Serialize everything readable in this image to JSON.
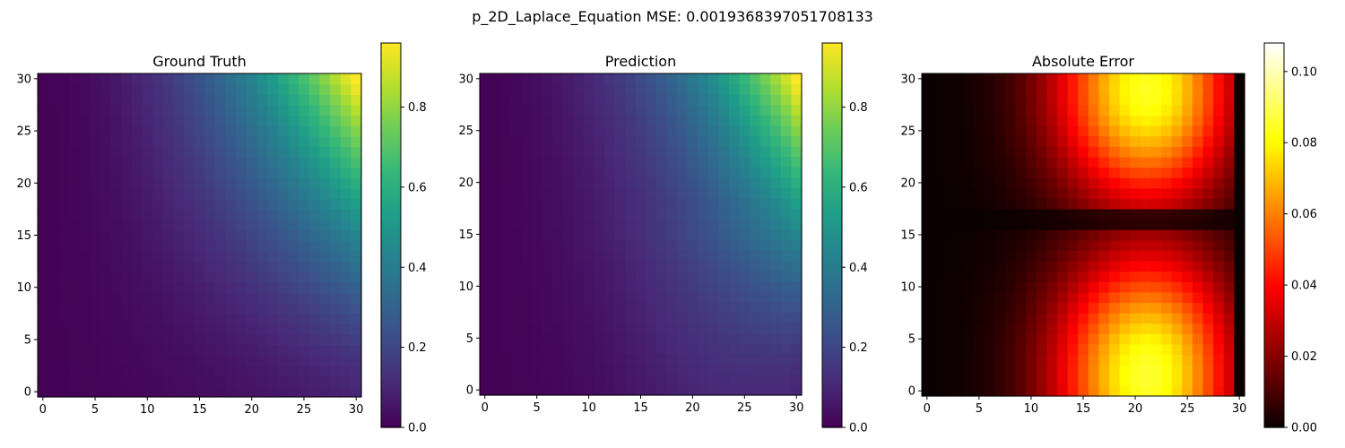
{
  "figure": {
    "suptitle": "p_2D_Laplace_Equation MSE: 0.0019368397051708133"
  },
  "chart_data": [
    {
      "type": "heatmap",
      "title": "Ground Truth",
      "colormap": "viridis",
      "grid_size": [
        31,
        31
      ],
      "x_ticks": [
        0,
        5,
        10,
        15,
        20,
        25,
        30
      ],
      "y_ticks": [
        0,
        5,
        10,
        15,
        20,
        25,
        30
      ],
      "x_range": [
        -0.5,
        30.5
      ],
      "y_range": [
        -0.5,
        30.5
      ],
      "origin": "lower",
      "value_range": [
        0.0,
        0.96
      ],
      "colorbar_ticks": [
        0.0,
        0.2,
        0.4,
        0.6,
        0.8
      ],
      "colorbar_tick_labels": [
        "0.0",
        "0.2",
        "0.4",
        "0.6",
        "0.8"
      ],
      "corner_values": {
        "bottom_left": 0.01,
        "bottom_right": 0.07,
        "top_left": 0.01,
        "top_right": 0.96
      }
    },
    {
      "type": "heatmap",
      "title": "Prediction",
      "colormap": "viridis",
      "grid_size": [
        31,
        31
      ],
      "x_ticks": [
        0,
        5,
        10,
        15,
        20,
        25,
        30
      ],
      "y_ticks": [
        0,
        5,
        10,
        15,
        20,
        25,
        30
      ],
      "x_range": [
        -0.5,
        30.5
      ],
      "y_range": [
        -0.5,
        30.5
      ],
      "origin": "lower",
      "value_range": [
        0.0,
        0.96
      ],
      "colorbar_ticks": [
        0.0,
        0.2,
        0.4,
        0.6,
        0.8
      ],
      "colorbar_tick_labels": [
        "0.0",
        "0.2",
        "0.4",
        "0.6",
        "0.8"
      ],
      "corner_values": {
        "bottom_left": 0.0,
        "bottom_right": 0.08,
        "top_left": 0.0,
        "top_right": 0.95
      }
    },
    {
      "type": "heatmap",
      "title": "Absolute Error",
      "colormap": "hot",
      "grid_size": [
        31,
        31
      ],
      "x_ticks": [
        0,
        5,
        10,
        15,
        20,
        25,
        30
      ],
      "y_ticks": [
        0,
        5,
        10,
        15,
        20,
        25,
        30
      ],
      "x_range": [
        -0.5,
        30.5
      ],
      "y_range": [
        -0.5,
        30.5
      ],
      "origin": "lower",
      "value_range": [
        0.0,
        0.108
      ],
      "colorbar_ticks": [
        0.0,
        0.02,
        0.04,
        0.06,
        0.08,
        0.1
      ],
      "colorbar_tick_labels": [
        "0.00",
        "0.02",
        "0.04",
        "0.06",
        "0.08",
        "0.10"
      ],
      "peaks": [
        {
          "x": 24,
          "y": 1,
          "value": 0.108
        },
        {
          "x": 24,
          "y": 29,
          "value": 0.106
        }
      ],
      "zero_line_y": 16.5
    }
  ]
}
